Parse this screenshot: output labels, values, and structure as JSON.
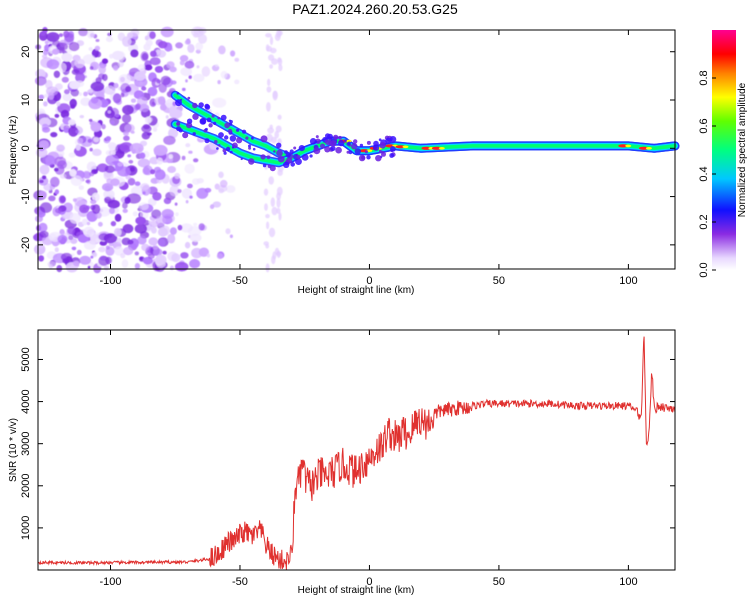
{
  "title": "PAZ1.2024.260.20.53.G25",
  "chart_data": [
    {
      "type": "heatmap",
      "name": "spectrogram",
      "title": "PAZ1.2024.260.20.53.G25",
      "xlabel": "Height of straight line (km)",
      "ylabel": "Frequency (Hz)",
      "xlim": [
        -128,
        118
      ],
      "ylim": [
        -25,
        24.5
      ],
      "xticks": [
        -100,
        -50,
        0,
        50,
        100
      ],
      "yticks": [
        -20,
        -10,
        0,
        10,
        20
      ],
      "xtick_labels": [
        "-100",
        "-50",
        "0",
        "50",
        "100"
      ],
      "ytick_labels": [
        "-20",
        "-10",
        "0",
        "10",
        "20"
      ],
      "colorbar": {
        "label": "Normalized spectral amplitude",
        "range": [
          0,
          1
        ],
        "ticks": [
          0.0,
          0.2,
          0.4,
          0.6,
          0.8
        ],
        "tick_labels": [
          "0.0",
          "0.2",
          "0.4",
          "0.6",
          "0.8"
        ],
        "colormap": "rainbow (white-purple-blue-cyan-green-yellow-red-magenta)"
      },
      "dominant_frequency_trace": {
        "x": [
          -75,
          -70,
          -65,
          -60,
          -55,
          -50,
          -45,
          -40,
          -35,
          -30,
          -25,
          -20,
          -15,
          -10,
          -5,
          0,
          5,
          10,
          20,
          40,
          60,
          80,
          100,
          110,
          118
        ],
        "upper_branch": [
          11,
          9,
          7.5,
          6,
          4.5,
          3,
          1.5,
          0.5,
          -1,
          -2,
          -0.5,
          0.5,
          1.5,
          1.5,
          -0.5,
          -0.5,
          0,
          0.5,
          0,
          0.5,
          0.5,
          0.5,
          0.5,
          0,
          0.5
        ],
        "lower_branch": [
          5,
          4,
          3,
          2,
          0.5,
          -1,
          -2,
          -2.5,
          -3,
          -2,
          -0.5,
          0.5,
          1.5,
          1.5,
          -0.5,
          -0.5,
          0,
          0.5,
          0,
          0.5,
          0.5,
          0.5,
          0.5,
          0,
          0.5
        ]
      },
      "noise_region_x": [
        -128,
        -60
      ],
      "grid": false
    },
    {
      "type": "line",
      "name": "snr",
      "xlabel": "Height of straight line (km)",
      "ylabel": "SNR (10 * v/v)",
      "xlim": [
        -128,
        118
      ],
      "ylim": [
        0,
        5700
      ],
      "xticks": [
        -100,
        -50,
        0,
        50,
        100
      ],
      "yticks": [
        1000,
        2000,
        3000,
        4000,
        5000
      ],
      "xtick_labels": [
        "-100",
        "-50",
        "0",
        "50",
        "100"
      ],
      "ytick_labels": [
        "1000",
        "2000",
        "3000",
        "4000",
        "5000"
      ],
      "color": "#e0312f",
      "series": [
        {
          "x": [
            -128,
            -110,
            -90,
            -70,
            -62,
            -58,
            -55,
            -52,
            -50,
            -48,
            -45,
            -42,
            -40,
            -38,
            -35,
            -32,
            -30,
            -29,
            -28,
            -27,
            -26,
            -25,
            -23,
            -21,
            -19,
            -17,
            -15,
            -13,
            -11,
            -9,
            -7,
            -5,
            -3,
            -1,
            1,
            3,
            5,
            7,
            9,
            11,
            13,
            15,
            17,
            19,
            21,
            23,
            25,
            28,
            31,
            34,
            37,
            40,
            45,
            50,
            60,
            70,
            80,
            90,
            100,
            103,
            105,
            106,
            107,
            108,
            109,
            110,
            112,
            115,
            118
          ],
          "y": [
            180,
            170,
            180,
            190,
            260,
            400,
            650,
            700,
            850,
            900,
            800,
            950,
            600,
            400,
            250,
            200,
            400,
            1500,
            2300,
            2000,
            2600,
            2200,
            2000,
            2100,
            2300,
            2200,
            2300,
            2350,
            2500,
            2450,
            2400,
            2300,
            2500,
            2600,
            2700,
            2900,
            2900,
            3300,
            3200,
            3100,
            3300,
            3200,
            3400,
            3600,
            3500,
            3500,
            3700,
            3800,
            3800,
            3850,
            3850,
            3900,
            3950,
            3950,
            3950,
            3950,
            3900,
            3900,
            3900,
            3800,
            3600,
            5700,
            3000,
            3200,
            4800,
            3800,
            3900,
            3850,
            3850
          ]
        }
      ],
      "grid": false
    }
  ]
}
